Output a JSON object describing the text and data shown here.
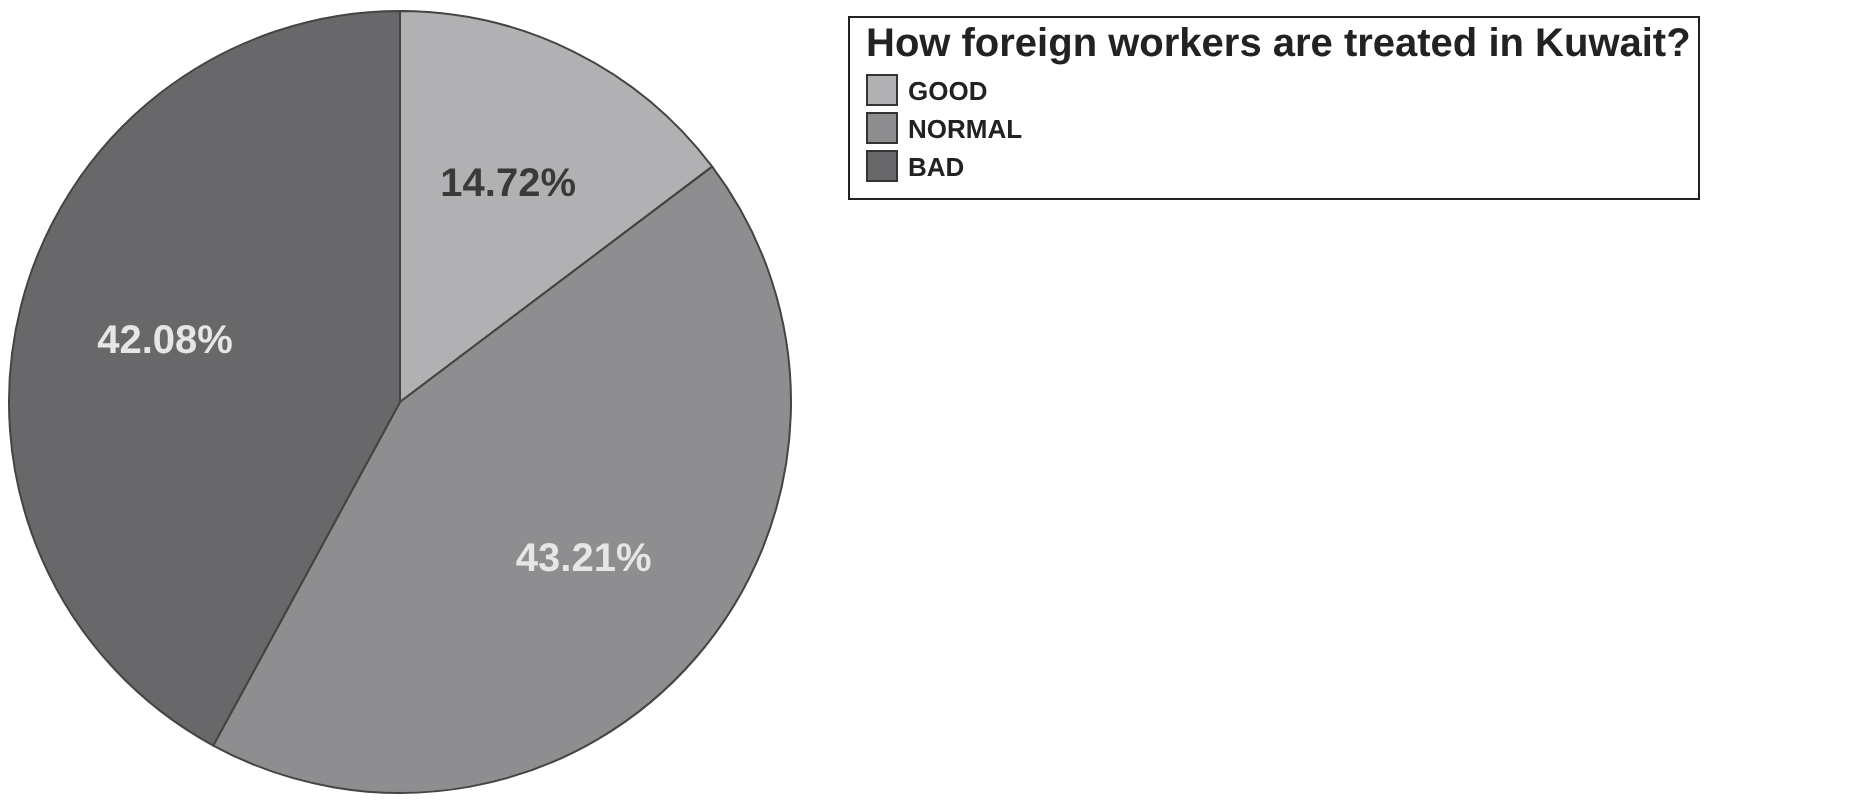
{
  "chart_data": {
    "type": "pie",
    "legend_title": "How foreign workers are treated in Kuwait?",
    "categories": [
      "GOOD",
      "NORMAL",
      "BAD"
    ],
    "values": [
      14.72,
      43.21,
      42.08
    ],
    "value_labels": [
      "14.72%",
      "43.21%",
      "42.08%"
    ],
    "colors": [
      "#b1b1b3",
      "#8e8e90",
      "#68686a"
    ],
    "legend": "top right"
  }
}
